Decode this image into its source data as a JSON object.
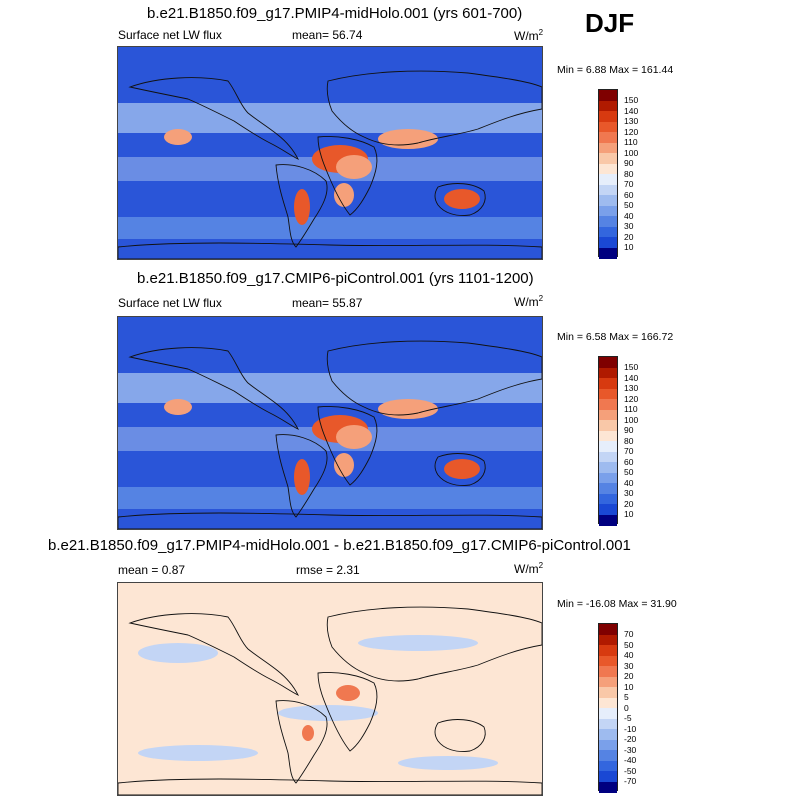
{
  "season": "DJF",
  "panels": [
    {
      "title": "b.e21.B1850.f09_g17.PMIP4-midHolo.001 (yrs 601-700)",
      "left_label": "Surface net LW flux",
      "mean_text": "mean=  56.74",
      "units": "W/m",
      "units_sup": "2",
      "minmax": "Min =  6.88 Max = 161.44",
      "scale": "abs"
    },
    {
      "title": "b.e21.B1850.f09_g17.CMIP6-piControl.001 (yrs 1101-1200)",
      "left_label": "Surface net LW flux",
      "mean_text": "mean=  55.87",
      "units": "W/m",
      "units_sup": "2",
      "minmax": "Min =  6.58 Max = 166.72",
      "scale": "abs"
    },
    {
      "title": "b.e21.B1850.f09_g17.PMIP4-midHolo.001 - b.e21.B1850.f09_g17.CMIP6-piControl.001",
      "left_label": "mean =   0.87",
      "mean_text": "rmse =   2.31",
      "units": "W/m",
      "units_sup": "2",
      "minmax": "Min = -16.08 Max =  31.90",
      "scale": "diff"
    }
  ],
  "colorbars": {
    "abs": {
      "labels": [
        "150",
        "140",
        "130",
        "120",
        "110",
        "100",
        "90",
        "80",
        "70",
        "60",
        "50",
        "40",
        "30",
        "20",
        "10"
      ],
      "colors": [
        "#7f0000",
        "#b01a00",
        "#d73a10",
        "#e8582a",
        "#f07850",
        "#f5a07a",
        "#f9c8a8",
        "#fde6d4",
        "#e6eefb",
        "#c3d5f5",
        "#9ebbef",
        "#7aa0ea",
        "#5583e3",
        "#3366de",
        "#1a48d4",
        "#000080"
      ]
    },
    "diff": {
      "labels": [
        "70",
        "50",
        "40",
        "30",
        "20",
        "10",
        "5",
        "0",
        "-5",
        "-10",
        "-20",
        "-30",
        "-40",
        "-50",
        "-70"
      ],
      "colors": [
        "#7f0000",
        "#b01a00",
        "#d73a10",
        "#e8582a",
        "#f07850",
        "#f5a07a",
        "#f9c8a8",
        "#fde6d4",
        "#e6eefb",
        "#c3d5f5",
        "#9ebbef",
        "#7aa0ea",
        "#5583e3",
        "#3366de",
        "#1a48d4",
        "#000080"
      ]
    }
  },
  "map_colors": {
    "ocean_low": "#2a55d8",
    "ocean_mid": "#5583e3",
    "ocean_light": "#9ebbef",
    "land_hot": "#e8582a",
    "land_warm": "#f5a07a",
    "diff_bg": "#fde6d4",
    "diff_blue": "#c3d5f5",
    "diff_red": "#f07850"
  }
}
